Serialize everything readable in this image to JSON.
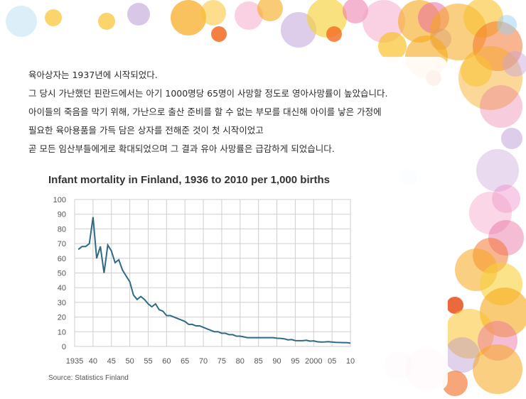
{
  "intro": {
    "lines": [
      "육아상자는 1937년에 시작되었다.",
      "그 당시 가난했던 핀란드에서는 아기 1000명당 65명이 사망할 정도로 영아사망률이 높았습니다.",
      "아이들의 죽음을 막기 위해, 가난으로 출산 준비를 할 수 없는 부모를 대신해 아이를 낳은 가정에",
      "필요한 육아용품을 가득 담은 상자를 전해준 것이 첫 시작이었고",
      "곧 모든 임산부들에게로 확대되었으며 그 결과 유아 사망률은 급감하게 되었습니다."
    ]
  },
  "colors": {
    "line": "#2e6a86",
    "grid": "#cfcfcf",
    "bubbles": [
      "#f7a81b",
      "#f26b21",
      "#f9c22e",
      "#e86c9f",
      "#b48fd0",
      "#ee82c3",
      "#f3a3c7",
      "#f6d13a",
      "#9bd0ee",
      "#e94e1b",
      "#c8a2da",
      "#f59a23"
    ]
  },
  "chart_data": {
    "type": "line",
    "title": "Infant mortality in Finland, 1936 to 2010 per 1,000 births",
    "source": "Source: Statistics Finland",
    "ylim": [
      0,
      100
    ],
    "xlim": [
      1935,
      2010
    ],
    "yticks": [
      0,
      10,
      20,
      30,
      40,
      50,
      60,
      70,
      80,
      90,
      100
    ],
    "xticks": [
      {
        "value": 1935,
        "label": "1935"
      },
      {
        "value": 1940,
        "label": "40"
      },
      {
        "value": 1945,
        "label": "45"
      },
      {
        "value": 1950,
        "label": "50"
      },
      {
        "value": 1955,
        "label": "55"
      },
      {
        "value": 1960,
        "label": "60"
      },
      {
        "value": 1965,
        "label": "65"
      },
      {
        "value": 1970,
        "label": "70"
      },
      {
        "value": 1975,
        "label": "75"
      },
      {
        "value": 1980,
        "label": "80"
      },
      {
        "value": 1985,
        "label": "85"
      },
      {
        "value": 1990,
        "label": "90"
      },
      {
        "value": 1995,
        "label": "95"
      },
      {
        "value": 2000,
        "label": "2000"
      },
      {
        "value": 2005,
        "label": "05"
      },
      {
        "value": 2010,
        "label": "10"
      }
    ],
    "grid": true,
    "series": [
      {
        "x": [
          1936,
          1937,
          1938,
          1939,
          1940,
          1941,
          1942,
          1943,
          1944,
          1945,
          1946,
          1947,
          1948,
          1949,
          1950,
          1951,
          1952,
          1953,
          1954,
          1955,
          1956,
          1957,
          1958,
          1959,
          1960,
          1961,
          1962,
          1963,
          1964,
          1965,
          1966,
          1967,
          1968,
          1969,
          1970,
          1971,
          1972,
          1973,
          1974,
          1975,
          1976,
          1977,
          1978,
          1979,
          1980,
          1981,
          1982,
          1983,
          1984,
          1985,
          1986,
          1987,
          1988,
          1989,
          1990,
          1991,
          1992,
          1993,
          1994,
          1995,
          1996,
          1997,
          1998,
          1999,
          2000,
          2001,
          2002,
          2003,
          2004,
          2005,
          2006,
          2007,
          2008,
          2009,
          2010
        ],
        "y": [
          66,
          68,
          68,
          70,
          88,
          60,
          68,
          50,
          69,
          65,
          57,
          59,
          52,
          48,
          44,
          35,
          32,
          34,
          32,
          29,
          27,
          29,
          25,
          24,
          21,
          21,
          20,
          19,
          18,
          17,
          15,
          15,
          14,
          14,
          13,
          12,
          11,
          10,
          10,
          9,
          9,
          8,
          8,
          7,
          7,
          6.5,
          6,
          6,
          6,
          6,
          6,
          6,
          6,
          6,
          5.6,
          5.5,
          5.2,
          4.5,
          4.7,
          4,
          3.9,
          3.9,
          4.2,
          3.6,
          3.8,
          3.2,
          3.0,
          3.1,
          3.3,
          3.0,
          2.8,
          2.7,
          2.6,
          2.6,
          2.3
        ]
      }
    ]
  }
}
